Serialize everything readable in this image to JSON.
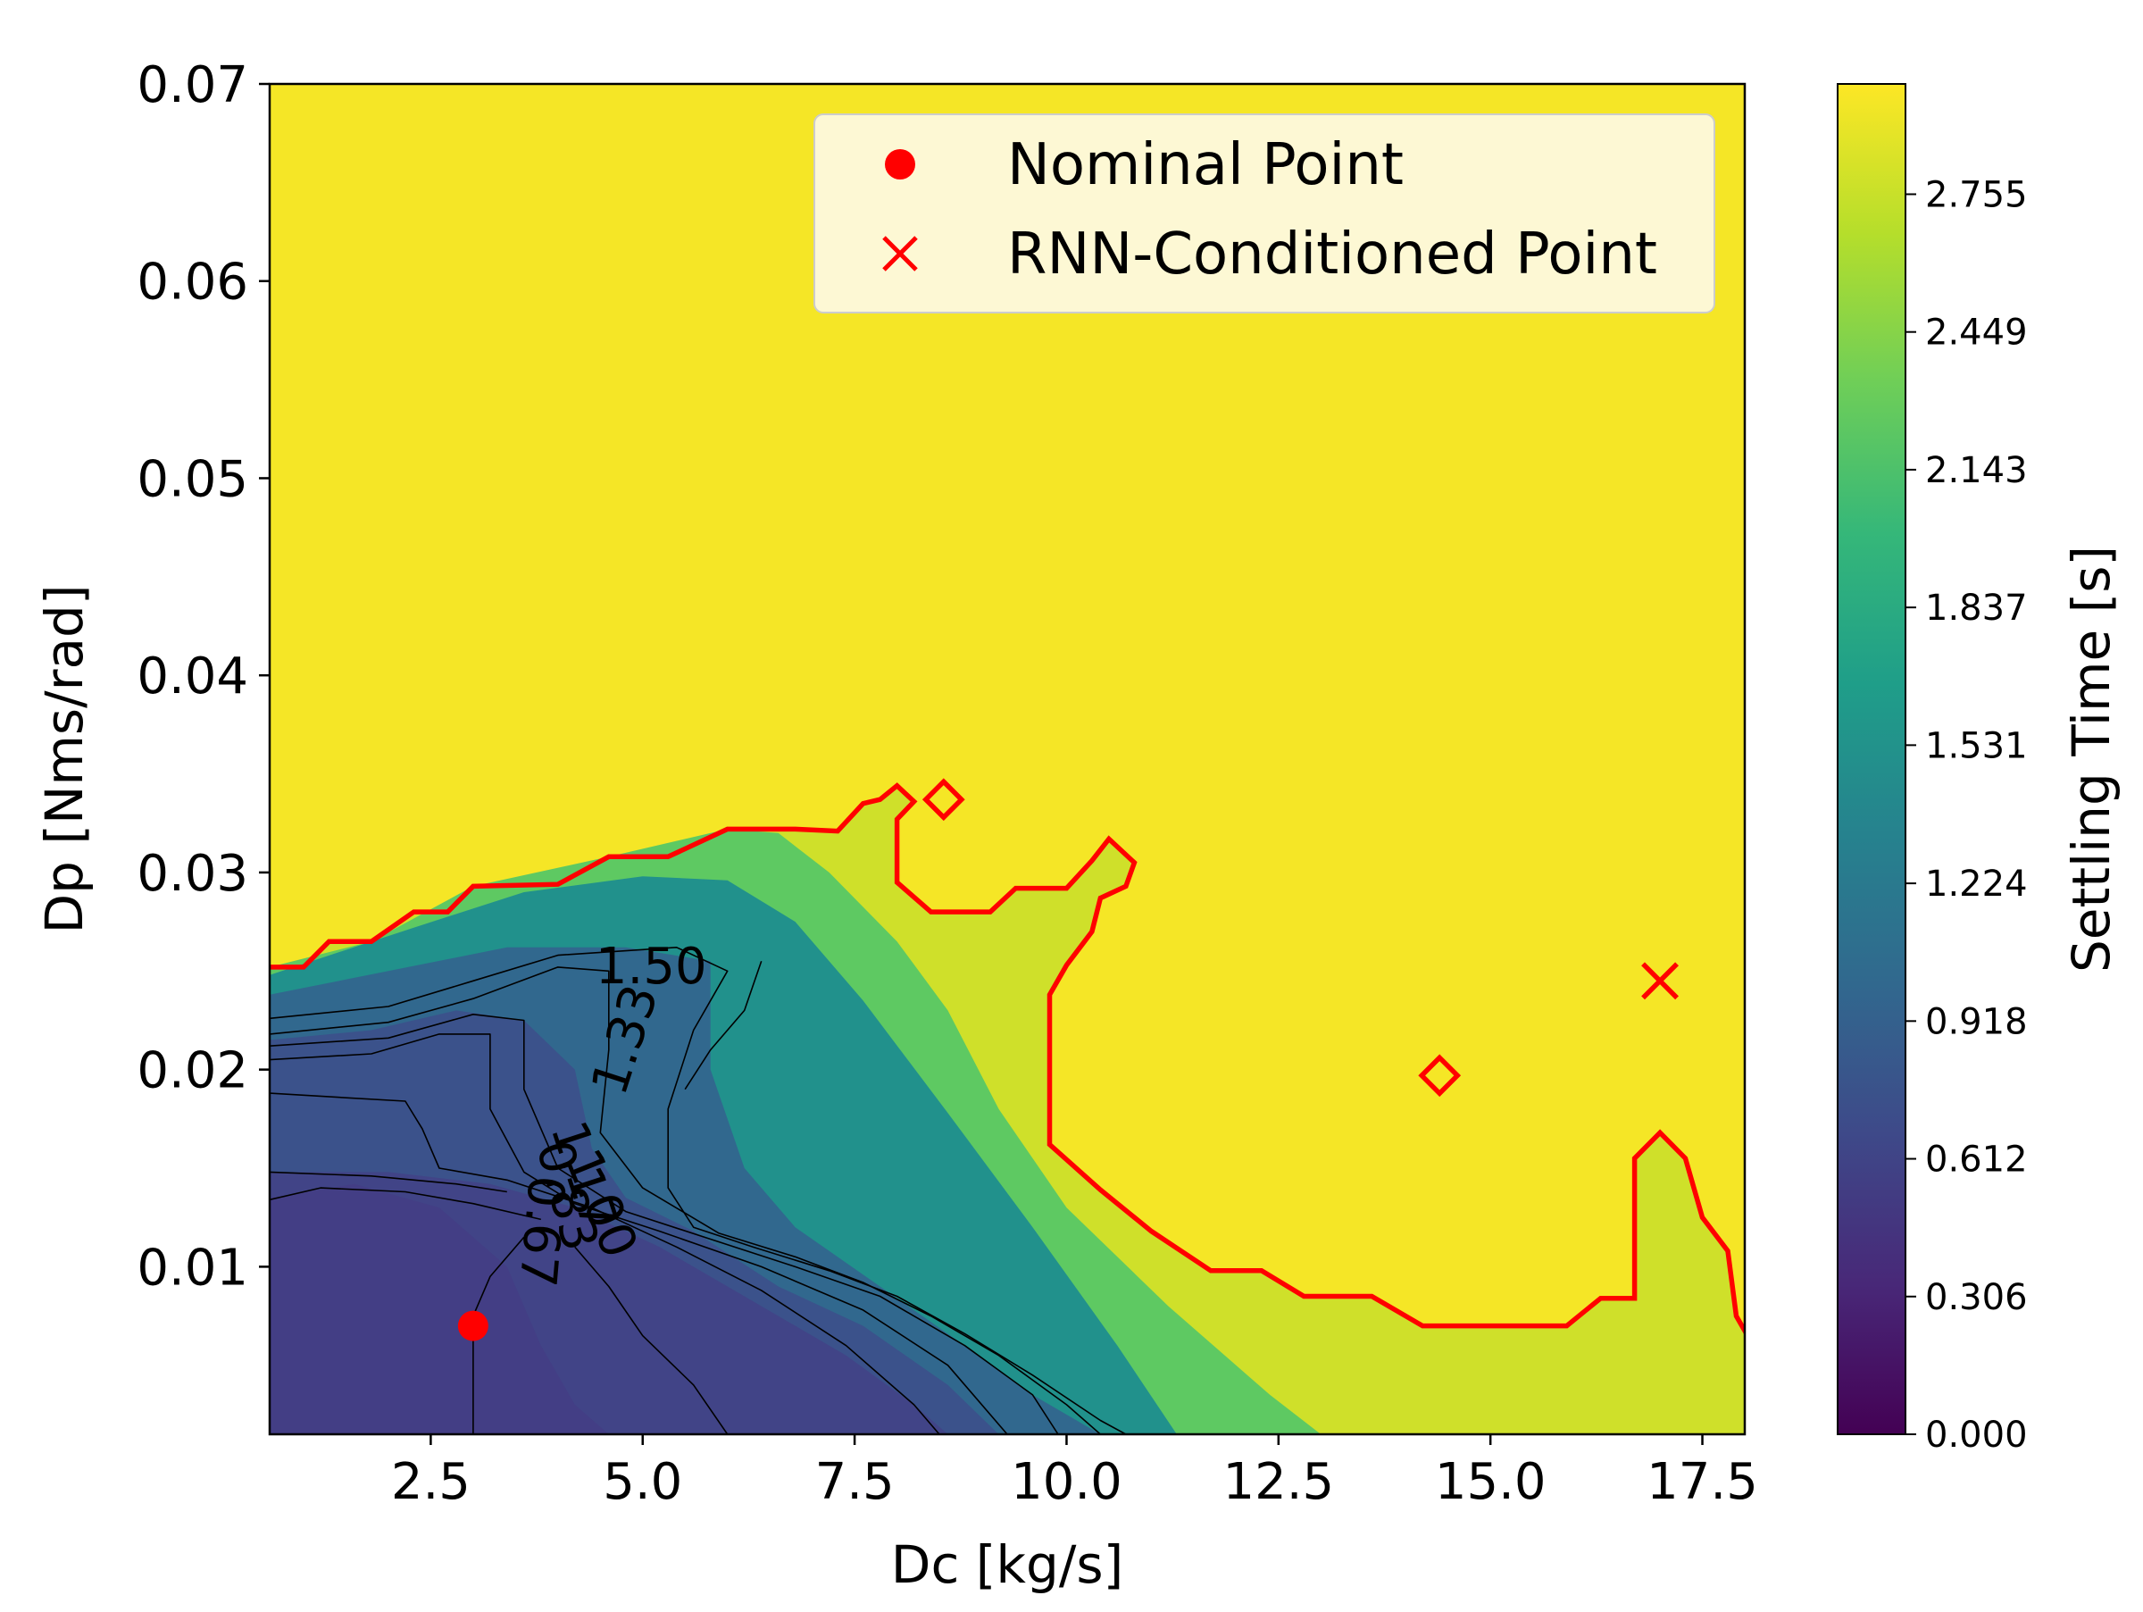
{
  "chart_data": {
    "type": "contour",
    "xlabel": "Dc [kg/s]",
    "ylabel": "Dp [Nms/rad]",
    "xlim": [
      0.6,
      18.0
    ],
    "ylim": [
      0.0015,
      0.07
    ],
    "xticks": [
      "2.5",
      "5.0",
      "7.5",
      "10.0",
      "12.5",
      "15.0",
      "17.5"
    ],
    "yticks": [
      "0.01",
      "0.02",
      "0.03",
      "0.04",
      "0.05",
      "0.06",
      "0.07"
    ],
    "colorbar": {
      "label": "Settling Time [s]",
      "range": [
        0.0,
        3.0
      ],
      "ticks": [
        "0.000",
        "0.306",
        "0.612",
        "0.918",
        "1.224",
        "1.531",
        "1.837",
        "2.143",
        "2.449",
        "2.755"
      ],
      "colormap": [
        "#440154",
        "#482878",
        "#3e4989",
        "#31688e",
        "#26828e",
        "#1f9e89",
        "#35b779",
        "#6ece58",
        "#b5de2b",
        "#fde725"
      ]
    },
    "contour_labels": [
      "1.50",
      "1.33",
      "1.17",
      "1.00",
      "0.83",
      "0.67"
    ],
    "legend": {
      "position": "top-right",
      "entries": [
        {
          "label": "Nominal Point",
          "marker": "circle",
          "color": "#ff0000"
        },
        {
          "label": "RNN-Conditioned Point",
          "marker": "x",
          "color": "#ff0000"
        }
      ]
    },
    "points": {
      "nominal": {
        "x": 3.0,
        "y": 0.007
      },
      "rnn_conditioned": {
        "x": 17.0,
        "y": 0.0245
      }
    },
    "boundary_color": "#ff0000",
    "boundary": [
      [
        0.6,
        0.0252
      ],
      [
        1.0,
        0.0252
      ],
      [
        1.3,
        0.0265
      ],
      [
        1.8,
        0.0265
      ],
      [
        2.3,
        0.028
      ],
      [
        2.7,
        0.028
      ],
      [
        3.0,
        0.0293
      ],
      [
        4.0,
        0.0294
      ],
      [
        4.6,
        0.0308
      ],
      [
        5.3,
        0.0308
      ],
      [
        6.0,
        0.0322
      ],
      [
        6.8,
        0.0322
      ],
      [
        7.3,
        0.0321
      ],
      [
        7.6,
        0.0335
      ],
      [
        7.8,
        0.0337
      ],
      [
        8.0,
        0.0344
      ],
      [
        8.2,
        0.0336
      ],
      [
        8.0,
        0.0327
      ],
      [
        8.0,
        0.0295
      ],
      [
        8.4,
        0.028
      ],
      [
        9.1,
        0.028
      ],
      [
        9.4,
        0.0292
      ],
      [
        10.0,
        0.0292
      ],
      [
        10.3,
        0.0306
      ],
      [
        10.5,
        0.0317
      ],
      [
        10.8,
        0.0305
      ],
      [
        10.7,
        0.0293
      ],
      [
        10.4,
        0.0287
      ],
      [
        10.3,
        0.027
      ],
      [
        10.0,
        0.0253
      ],
      [
        9.8,
        0.0238
      ],
      [
        9.8,
        0.0162
      ],
      [
        10.4,
        0.0139
      ],
      [
        11.0,
        0.0118
      ],
      [
        11.7,
        0.0098
      ],
      [
        12.3,
        0.0098
      ],
      [
        12.8,
        0.0085
      ],
      [
        13.6,
        0.0085
      ],
      [
        14.2,
        0.007
      ],
      [
        15.4,
        0.007
      ],
      [
        15.9,
        0.007
      ],
      [
        16.3,
        0.0084
      ],
      [
        16.7,
        0.0084
      ],
      [
        16.7,
        0.0155
      ],
      [
        17.0,
        0.0168
      ],
      [
        17.3,
        0.0155
      ],
      [
        17.5,
        0.0125
      ],
      [
        17.8,
        0.0108
      ],
      [
        17.9,
        0.0075
      ],
      [
        18.1,
        0.006
      ],
      [
        18.2,
        0.003
      ],
      [
        18.3,
        0.0015
      ]
    ],
    "boundary_islands": [
      {
        "x": 8.55,
        "y": 0.0337
      },
      {
        "x": 14.4,
        "y": 0.0197
      }
    ]
  }
}
